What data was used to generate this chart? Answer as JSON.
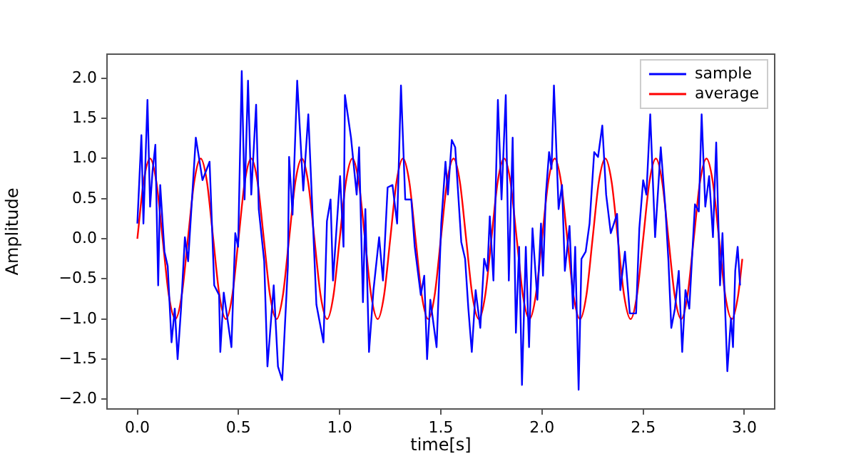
{
  "chart_data": {
    "type": "line",
    "xlabel": "time[s]",
    "ylabel": "Amplitude",
    "xlim": [
      -0.15,
      3.15
    ],
    "ylim": [
      -2.12,
      2.3
    ],
    "xticks": [
      {
        "value": 0,
        "label": "0.0"
      },
      {
        "value": 0.5,
        "label": "0.5"
      },
      {
        "value": 1,
        "label": "1.0"
      },
      {
        "value": 1.5,
        "label": "1.5"
      },
      {
        "value": 2,
        "label": "2.0"
      },
      {
        "value": 2.5,
        "label": "2.5"
      },
      {
        "value": 3,
        "label": "3.0"
      }
    ],
    "yticks": [
      {
        "value": -2,
        "label": "−2.0"
      },
      {
        "value": -1.5,
        "label": "−1.5"
      },
      {
        "value": -1,
        "label": "−1.0"
      },
      {
        "value": -0.5,
        "label": "−0.5"
      },
      {
        "value": 0,
        "label": "0.0"
      },
      {
        "value": 0.5,
        "label": "0.5"
      },
      {
        "value": 1,
        "label": "1.0"
      },
      {
        "value": 1.5,
        "label": "1.5"
      },
      {
        "value": 2,
        "label": "2.0"
      }
    ],
    "grid": false,
    "legend": "top right",
    "marker": "none",
    "line_style": "solid",
    "series": [
      {
        "name": "sample",
        "color": "#0000ff",
        "x": [
          0,
          0.02,
          0.03,
          0.05,
          0.063,
          0.075,
          0.089,
          0.103,
          0.113,
          0.134,
          0.15,
          0.169,
          0.185,
          0.199,
          0.216,
          0.235,
          0.251,
          0.289,
          0.322,
          0.357,
          0.38,
          0.404,
          0.41,
          0.427,
          0.465,
          0.484,
          0.498,
          0.516,
          0.53,
          0.547,
          0.563,
          0.587,
          0.6,
          0.627,
          0.643,
          0.674,
          0.695,
          0.716,
          0.744,
          0.75,
          0.767,
          0.79,
          0.82,
          0.845,
          0.885,
          0.92,
          0.937,
          0.955,
          0.967,
          1.002,
          1.019,
          1.026,
          1.056,
          1.084,
          1.096,
          1.115,
          1.127,
          1.145,
          1.167,
          1.195,
          1.214,
          1.237,
          1.261,
          1.284,
          1.303,
          1.324,
          1.354,
          1.371,
          1.401,
          1.418,
          1.432,
          1.448,
          1.479,
          1.502,
          1.523,
          1.535,
          1.554,
          1.571,
          1.601,
          1.62,
          1.636,
          1.653,
          1.672,
          1.695,
          1.714,
          1.73,
          1.742,
          1.76,
          1.782,
          1.8,
          1.821,
          1.836,
          1.855,
          1.871,
          1.887,
          1.901,
          1.92,
          1.936,
          1.953,
          1.977,
          1.995,
          2.005,
          2.019,
          2.035,
          2.047,
          2.059,
          2.082,
          2.099,
          2.113,
          2.136,
          2.153,
          2.164,
          2.181,
          2.195,
          2.216,
          2.235,
          2.258,
          2.277,
          2.298,
          2.317,
          2.34,
          2.371,
          2.387,
          2.41,
          2.434,
          2.465,
          2.481,
          2.5,
          2.516,
          2.535,
          2.559,
          2.587,
          2.61,
          2.625,
          2.639,
          2.657,
          2.676,
          2.693,
          2.709,
          2.728,
          2.756,
          2.775,
          2.789,
          2.807,
          2.826,
          2.845,
          2.861,
          2.88,
          2.892,
          2.916,
          2.934,
          2.944,
          2.955,
          2.967,
          2.979
        ],
        "values": [
          0.19,
          1.29,
          0.19,
          1.73,
          0.4,
          0.84,
          1.17,
          -0.58,
          0.67,
          -0.16,
          -0.34,
          -1.29,
          -0.87,
          -1.5,
          -0.87,
          0.02,
          -0.28,
          1.26,
          0.73,
          0.96,
          -0.58,
          -0.7,
          -1.41,
          -0.67,
          -1.35,
          0.07,
          -0.1,
          2.09,
          0.49,
          1.97,
          0.55,
          1.67,
          0.37,
          -0.28,
          -1.59,
          -0.58,
          -1.59,
          -1.76,
          -0.34,
          1.02,
          0.3,
          1.97,
          0.6,
          1.55,
          -0.82,
          -1.29,
          0.22,
          0.49,
          -0.52,
          0.78,
          -0.1,
          1.79,
          1.26,
          0.55,
          1.14,
          -0.79,
          0.37,
          -1.41,
          -0.64,
          0.02,
          -0.52,
          0.64,
          0.67,
          0.19,
          1.91,
          0.49,
          0.49,
          -0.1,
          -0.7,
          -0.46,
          -1.5,
          -0.76,
          -1.35,
          0.19,
          0.96,
          0.55,
          1.23,
          1.14,
          -0.04,
          -0.25,
          -0.87,
          -1.41,
          -0.64,
          -1.11,
          -0.25,
          -0.4,
          0.28,
          -0.52,
          1.73,
          0.49,
          1.79,
          -0.52,
          1.26,
          -1.17,
          -0.1,
          -1.82,
          -0.1,
          -1.35,
          0.13,
          -0.76,
          0.19,
          -0.46,
          0.55,
          1.08,
          0.87,
          1.91,
          0.37,
          0.67,
          -0.4,
          0.16,
          -0.87,
          -0.1,
          -1.88,
          -0.25,
          -0.16,
          0.19,
          1.08,
          1.02,
          1.41,
          0.55,
          0.07,
          0.31,
          -0.64,
          -0.16,
          -0.93,
          -0.93,
          0.13,
          0.73,
          0.55,
          1.55,
          0.02,
          1.14,
          0.37,
          -0.28,
          -1.11,
          -0.87,
          -0.4,
          -1.41,
          -0.64,
          -0.87,
          0.43,
          0.34,
          1.55,
          0.4,
          0.78,
          0.02,
          1.2,
          -0.58,
          0.07,
          -1.65,
          -0.99,
          -1.35,
          -0.4,
          -0.1,
          -0.58
        ]
      },
      {
        "name": "average",
        "color": "#ff0000",
        "x": [
          0,
          0.031,
          0.063,
          0.094,
          0.125,
          0.156,
          0.188,
          0.219,
          0.25,
          0.281,
          0.313,
          0.344,
          0.375,
          0.406,
          0.438,
          0.469,
          0.5,
          0.531,
          0.563,
          0.594,
          0.625,
          0.656,
          0.688,
          0.719,
          0.75,
          0.781,
          0.813,
          0.844,
          0.875,
          0.906,
          0.938,
          0.969,
          1,
          1.031,
          1.063,
          1.094,
          1.125,
          1.156,
          1.188,
          1.219,
          1.25,
          1.281,
          1.313,
          1.344,
          1.375,
          1.406,
          1.438,
          1.469,
          1.5,
          1.531,
          1.563,
          1.594,
          1.625,
          1.656,
          1.688,
          1.719,
          1.75,
          1.781,
          1.813,
          1.844,
          1.875,
          1.906,
          1.938,
          1.969,
          2,
          2.031,
          2.063,
          2.094,
          2.125,
          2.156,
          2.188,
          2.219,
          2.25,
          2.281,
          2.313,
          2.344,
          2.375,
          2.406,
          2.438,
          2.469,
          2.5,
          2.531,
          2.563,
          2.594,
          2.625,
          2.656,
          2.688,
          2.719,
          2.75,
          2.781,
          2.813,
          2.844,
          2.875,
          2.906,
          2.938,
          2.969,
          2.99
        ],
        "values": [
          0,
          0.71,
          1,
          0.71,
          0,
          -0.71,
          -1,
          -0.71,
          0,
          0.71,
          1,
          0.71,
          0,
          -0.71,
          -1,
          -0.71,
          0,
          0.71,
          1,
          0.71,
          0,
          -0.71,
          -1,
          -0.71,
          0,
          0.71,
          1,
          0.71,
          0,
          -0.71,
          -1,
          -0.71,
          0,
          0.71,
          1,
          0.71,
          0,
          -0.71,
          -1,
          -0.71,
          0,
          0.71,
          1,
          0.71,
          0,
          -0.71,
          -1,
          -0.71,
          0,
          0.71,
          1,
          0.71,
          0,
          -0.71,
          -1,
          -0.71,
          0,
          0.71,
          1,
          0.71,
          0,
          -0.71,
          -1,
          -0.71,
          0,
          0.71,
          1,
          0.71,
          0,
          -0.71,
          -1,
          -0.71,
          0,
          0.71,
          1,
          0.71,
          0,
          -0.71,
          -1,
          -0.71,
          0,
          0.71,
          1,
          0.71,
          0,
          -0.71,
          -1,
          -0.71,
          0,
          0.71,
          1,
          0.71,
          0,
          -0.71,
          -1,
          -0.71,
          -0.25
        ]
      }
    ]
  }
}
